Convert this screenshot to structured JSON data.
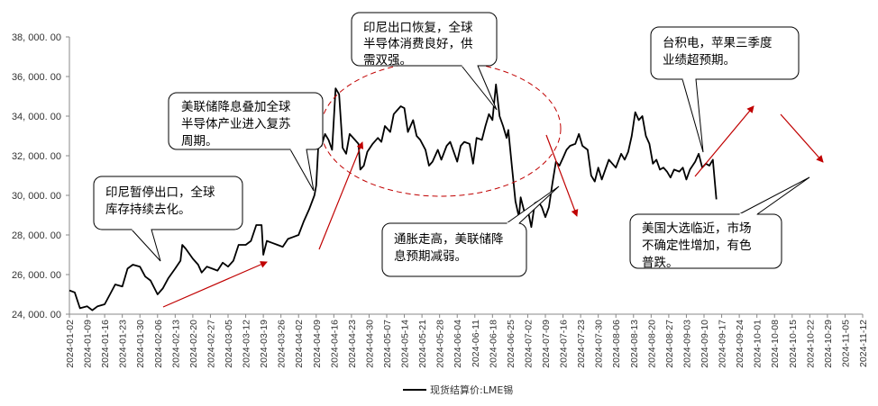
{
  "chart_data": {
    "type": "line",
    "ylim": [
      24000,
      38000
    ],
    "y_ticks": [
      {
        "value": 24000,
        "label": "24, 000. 00"
      },
      {
        "value": 26000,
        "label": "26, 000. 00"
      },
      {
        "value": 28000,
        "label": "28, 000. 00"
      },
      {
        "value": 30000,
        "label": "30, 000. 00"
      },
      {
        "value": 32000,
        "label": "32, 000. 00"
      },
      {
        "value": 34000,
        "label": "34, 000. 00"
      },
      {
        "value": 36000,
        "label": "36, 000. 00"
      },
      {
        "value": 38000,
        "label": "38, 000. 00"
      }
    ],
    "x_ticks": [
      "2024-01-02",
      "2024-01-09",
      "2024-01-16",
      "2024-01-23",
      "2024-01-30",
      "2024-02-06",
      "2024-02-13",
      "2024-02-20",
      "2024-02-27",
      "2024-03-05",
      "2024-03-12",
      "2024-03-19",
      "2024-03-26",
      "2024-04-02",
      "2024-04-09",
      "2024-04-16",
      "2024-04-23",
      "2024-04-30",
      "2024-05-07",
      "2024-05-14",
      "2024-05-21",
      "2024-05-28",
      "2024-06-04",
      "2024-06-11",
      "2024-06-18",
      "2024-06-25",
      "2024-07-02",
      "2024-07-09",
      "2024-07-16",
      "2024-07-23",
      "2024-07-30",
      "2024-08-06",
      "2024-08-13",
      "2024-08-20",
      "2024-08-27",
      "2024-09-03",
      "2024-09-10",
      "2024-09-17",
      "2024-09-24",
      "2024-10-01",
      "2024-10-08",
      "2024-10-15",
      "2024-10-22",
      "2024-10-29",
      "2024-11-05",
      "2024-11-12"
    ],
    "series": [
      {
        "name": "现货结算价:LME锡",
        "color": "#000000",
        "points": [
          [
            0,
            25200
          ],
          [
            0.3,
            25100
          ],
          [
            0.6,
            24300
          ],
          [
            1.0,
            24400
          ],
          [
            1.3,
            24200
          ],
          [
            1.6,
            24400
          ],
          [
            2.0,
            24500
          ],
          [
            2.3,
            25000
          ],
          [
            2.6,
            25500
          ],
          [
            3.0,
            25400
          ],
          [
            3.3,
            26300
          ],
          [
            3.6,
            26500
          ],
          [
            4.0,
            26400
          ],
          [
            4.3,
            25900
          ],
          [
            4.6,
            25700
          ],
          [
            5.0,
            25000
          ],
          [
            5.3,
            25300
          ],
          [
            5.6,
            25800
          ],
          [
            6.0,
            26300
          ],
          [
            6.3,
            26700
          ],
          [
            6.4,
            27500
          ],
          [
            6.6,
            27300
          ],
          [
            7.0,
            26800
          ],
          [
            7.3,
            26500
          ],
          [
            7.5,
            26100
          ],
          [
            7.8,
            26400
          ],
          [
            8.1,
            26300
          ],
          [
            8.4,
            26200
          ],
          [
            8.7,
            26600
          ],
          [
            9.0,
            26400
          ],
          [
            9.3,
            26700
          ],
          [
            9.6,
            27500
          ],
          [
            10.0,
            27500
          ],
          [
            10.3,
            27700
          ],
          [
            10.6,
            28500
          ],
          [
            10.9,
            28500
          ],
          [
            11.0,
            27000
          ],
          [
            11.2,
            27700
          ],
          [
            11.5,
            27600
          ],
          [
            11.8,
            27500
          ],
          [
            12.1,
            27400
          ],
          [
            12.4,
            27800
          ],
          [
            12.7,
            27900
          ],
          [
            13.0,
            28000
          ],
          [
            13.3,
            28700
          ],
          [
            13.6,
            29300
          ],
          [
            13.9,
            30000
          ],
          [
            14.0,
            30500
          ],
          [
            14.15,
            33000
          ],
          [
            14.3,
            32500
          ],
          [
            14.5,
            33100
          ],
          [
            14.7,
            32800
          ],
          [
            14.9,
            32300
          ],
          [
            15.1,
            35400
          ],
          [
            15.3,
            35100
          ],
          [
            15.5,
            32400
          ],
          [
            15.7,
            32100
          ],
          [
            15.9,
            33100
          ],
          [
            16.2,
            32800
          ],
          [
            16.4,
            32600
          ],
          [
            16.5,
            31300
          ],
          [
            16.7,
            31500
          ],
          [
            16.9,
            32200
          ],
          [
            17.2,
            32600
          ],
          [
            17.5,
            32900
          ],
          [
            17.7,
            32700
          ],
          [
            17.9,
            33500
          ],
          [
            18.2,
            33200
          ],
          [
            18.4,
            34100
          ],
          [
            18.6,
            34300
          ],
          [
            18.8,
            34500
          ],
          [
            19.0,
            34400
          ],
          [
            19.2,
            33200
          ],
          [
            19.5,
            33800
          ],
          [
            19.7,
            33000
          ],
          [
            19.9,
            32800
          ],
          [
            20.2,
            32300
          ],
          [
            20.4,
            31500
          ],
          [
            20.6,
            31700
          ],
          [
            20.9,
            32300
          ],
          [
            21.1,
            31800
          ],
          [
            21.4,
            32500
          ],
          [
            21.6,
            32700
          ],
          [
            21.8,
            32200
          ],
          [
            22.0,
            31700
          ],
          [
            22.2,
            32500
          ],
          [
            22.4,
            32700
          ],
          [
            22.7,
            32600
          ],
          [
            22.9,
            31600
          ],
          [
            23.1,
            32900
          ],
          [
            23.4,
            32800
          ],
          [
            23.6,
            33500
          ],
          [
            23.8,
            34100
          ],
          [
            24.0,
            33800
          ],
          [
            24.2,
            35600
          ],
          [
            24.4,
            34000
          ],
          [
            24.6,
            33500
          ],
          [
            24.8,
            32900
          ],
          [
            24.9,
            33300
          ],
          [
            25.1,
            31500
          ],
          [
            25.3,
            29700
          ],
          [
            25.5,
            28900
          ],
          [
            25.6,
            29900
          ],
          [
            25.8,
            29200
          ],
          [
            26.0,
            29300
          ],
          [
            26.2,
            28400
          ],
          [
            26.4,
            29600
          ],
          [
            26.6,
            29700
          ],
          [
            26.8,
            29400
          ],
          [
            27.0,
            28900
          ],
          [
            27.2,
            29400
          ],
          [
            27.4,
            30600
          ],
          [
            27.6,
            31700
          ],
          [
            27.8,
            31500
          ],
          [
            28.0,
            31900
          ],
          [
            28.2,
            32300
          ],
          [
            28.4,
            32500
          ],
          [
            28.7,
            32600
          ],
          [
            28.9,
            33100
          ],
          [
            29.1,
            32500
          ],
          [
            29.4,
            32300
          ],
          [
            29.6,
            31000
          ],
          [
            29.8,
            30700
          ],
          [
            30.0,
            31400
          ],
          [
            30.2,
            30800
          ],
          [
            30.4,
            31300
          ],
          [
            30.6,
            31800
          ],
          [
            30.8,
            31600
          ],
          [
            31.0,
            31400
          ],
          [
            31.3,
            32100
          ],
          [
            31.5,
            31800
          ],
          [
            31.7,
            32200
          ],
          [
            31.9,
            33000
          ],
          [
            32.1,
            34200
          ],
          [
            32.3,
            33800
          ],
          [
            32.5,
            34000
          ],
          [
            32.7,
            33000
          ],
          [
            32.9,
            32600
          ],
          [
            33.1,
            31600
          ],
          [
            33.3,
            31800
          ],
          [
            33.5,
            31300
          ],
          [
            33.7,
            31400
          ],
          [
            33.9,
            31200
          ],
          [
            34.1,
            30900
          ],
          [
            34.3,
            31300
          ],
          [
            34.6,
            31200
          ],
          [
            34.8,
            31400
          ],
          [
            35.0,
            30800
          ],
          [
            35.2,
            31300
          ],
          [
            35.5,
            31700
          ],
          [
            35.7,
            32100
          ],
          [
            35.9,
            31400
          ],
          [
            36.1,
            31600
          ],
          [
            36.3,
            31500
          ],
          [
            36.5,
            31800
          ],
          [
            36.7,
            29800
          ]
        ]
      }
    ],
    "annotations": [
      {
        "id": "a1",
        "lines": [
          "印尼暂停出口，全球",
          "库存持续去化。"
        ]
      },
      {
        "id": "a2",
        "lines": [
          "美联储降息叠加全球",
          "半导体产业进入复苏",
          "周期。"
        ]
      },
      {
        "id": "a3",
        "lines": [
          "印尼出口恢复，全球",
          "半导体消费良好，供",
          "需双强。"
        ]
      },
      {
        "id": "a4",
        "lines": [
          "通胀走高，美联储降",
          "息预期减弱。"
        ]
      },
      {
        "id": "a5",
        "lines": [
          "台积电，苹果三季度",
          "业绩超预期。"
        ]
      },
      {
        "id": "a6",
        "lines": [
          "美国大选临近，市场",
          "不确定性增加，有色",
          "普跌。"
        ]
      }
    ],
    "legend": {
      "label": "现货结算价:LME锡",
      "position": "bottom"
    },
    "colors": {
      "line": "#000000",
      "arrow": "#c00000",
      "ellipse": "#c00000",
      "axis": "#888888"
    }
  }
}
